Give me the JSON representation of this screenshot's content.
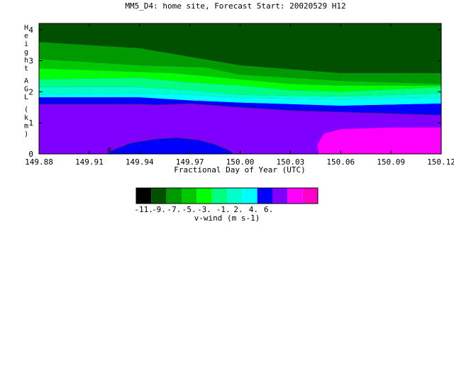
{
  "chart_data": {
    "type": "heatmap",
    "title": "MM5_D4: home site,  Forecast Start: 20020529 H12",
    "xlabel": "Fractional Day of Year (UTC)",
    "ylabel": "Height AGL (km)",
    "xlim": [
      149.88,
      150.12
    ],
    "ylim": [
      0,
      4.2
    ],
    "xticks": [
      "149.88",
      "149.91",
      "149.94",
      "149.97",
      "150.00",
      "150.03",
      "150.06",
      "150.09",
      "150.12"
    ],
    "yticks": [
      "0",
      "1",
      "2",
      "3",
      "4"
    ],
    "grid": false,
    "colorbar": {
      "label": "v-wind (m s-1)",
      "ticks": [
        "-11.",
        "-9.",
        "-7.",
        "-5.",
        "-3.",
        "-1.",
        "2.",
        "4.",
        "6."
      ],
      "bands": [
        {
          "from": -12,
          "to": -11,
          "color": "#000000"
        },
        {
          "from": -11,
          "to": -10,
          "color": "#005000"
        },
        {
          "from": -10,
          "to": -9,
          "color": "#009a00"
        },
        {
          "from": -9,
          "to": -8,
          "color": "#00c800"
        },
        {
          "from": -8,
          "to": -7,
          "color": "#00ff00"
        },
        {
          "from": -7,
          "to": -5,
          "color": "#00ff80"
        },
        {
          "from": -5,
          "to": -3,
          "color": "#00ffcc"
        },
        {
          "from": -3,
          "to": -1,
          "color": "#00ffff"
        },
        {
          "from": -1,
          "to": 0,
          "color": "#0000ff"
        },
        {
          "from": 0,
          "to": 2,
          "color": "#8000ff"
        },
        {
          "from": 2,
          "to": 4,
          "color": "#ff00ff"
        },
        {
          "from": 4,
          "to": 6,
          "color": "#ff00c8"
        }
      ]
    },
    "contour_zero_label": "0",
    "regions": [
      {
        "level": -10,
        "color": "#005000",
        "points": [
          [
            149.88,
            4.2
          ],
          [
            150.12,
            4.2
          ],
          [
            150.12,
            2.6
          ],
          [
            150.06,
            2.6
          ],
          [
            150.0,
            2.85
          ],
          [
            149.94,
            3.4
          ],
          [
            149.88,
            3.6
          ]
        ]
      },
      {
        "level": -9,
        "color": "#009a00",
        "points": [
          [
            149.88,
            3.6
          ],
          [
            149.94,
            3.4
          ],
          [
            150.0,
            2.85
          ],
          [
            150.06,
            2.6
          ],
          [
            150.12,
            2.6
          ],
          [
            150.12,
            2.25
          ],
          [
            150.06,
            2.35
          ],
          [
            150.0,
            2.55
          ],
          [
            149.98,
            2.78
          ],
          [
            149.94,
            2.85
          ],
          [
            149.88,
            3.05
          ]
        ]
      },
      {
        "level": -8,
        "color": "#00c800",
        "points": [
          [
            149.88,
            3.05
          ],
          [
            149.94,
            2.85
          ],
          [
            149.98,
            2.78
          ],
          [
            150.0,
            2.55
          ],
          [
            150.06,
            2.35
          ],
          [
            150.12,
            2.25
          ],
          [
            150.12,
            2.2
          ],
          [
            150.06,
            2.2
          ],
          [
            150.03,
            2.25
          ],
          [
            149.98,
            2.5
          ],
          [
            149.96,
            2.6
          ],
          [
            149.88,
            2.75
          ]
        ]
      },
      {
        "level": -7,
        "color": "#00ff00",
        "points": [
          [
            149.88,
            2.75
          ],
          [
            149.96,
            2.6
          ],
          [
            149.98,
            2.5
          ],
          [
            150.03,
            2.25
          ],
          [
            150.06,
            2.2
          ],
          [
            150.12,
            2.2
          ],
          [
            150.12,
            2.15
          ],
          [
            150.06,
            2.0
          ],
          [
            150.03,
            2.05
          ],
          [
            150.0,
            2.2
          ],
          [
            149.97,
            2.3
          ],
          [
            149.94,
            2.45
          ],
          [
            149.88,
            2.4
          ]
        ]
      },
      {
        "level": -5,
        "color": "#00ff80",
        "points": [
          [
            149.88,
            2.4
          ],
          [
            149.94,
            2.45
          ],
          [
            149.97,
            2.3
          ],
          [
            150.0,
            2.2
          ],
          [
            150.03,
            2.05
          ],
          [
            150.06,
            2.0
          ],
          [
            150.12,
            2.15
          ],
          [
            150.12,
            1.95
          ],
          [
            150.06,
            1.85
          ],
          [
            150.0,
            1.9
          ],
          [
            149.97,
            2.05
          ],
          [
            149.94,
            2.15
          ],
          [
            149.88,
            2.15
          ]
        ]
      },
      {
        "level": -3,
        "color": "#00ffcc",
        "points": [
          [
            149.88,
            2.15
          ],
          [
            149.94,
            2.15
          ],
          [
            149.97,
            2.05
          ],
          [
            150.0,
            1.9
          ],
          [
            150.06,
            1.85
          ],
          [
            150.12,
            1.95
          ],
          [
            150.12,
            1.8
          ],
          [
            150.06,
            1.75
          ],
          [
            150.0,
            1.8
          ],
          [
            149.97,
            1.9
          ],
          [
            149.94,
            1.95
          ],
          [
            149.88,
            1.9
          ]
        ]
      },
      {
        "level": -2,
        "color": "#00ffff",
        "points": [
          [
            149.88,
            1.9
          ],
          [
            149.94,
            1.95
          ],
          [
            149.97,
            1.9
          ],
          [
            150.0,
            1.8
          ],
          [
            150.06,
            1.75
          ],
          [
            150.12,
            1.8
          ],
          [
            150.12,
            1.62
          ],
          [
            150.06,
            1.55
          ],
          [
            150.0,
            1.65
          ],
          [
            149.97,
            1.72
          ],
          [
            149.94,
            1.82
          ],
          [
            149.88,
            1.82
          ]
        ]
      },
      {
        "level": -1,
        "color": "#0000ff",
        "points": [
          [
            149.88,
            1.82
          ],
          [
            149.94,
            1.82
          ],
          [
            149.97,
            1.72
          ],
          [
            150.0,
            1.65
          ],
          [
            150.06,
            1.55
          ],
          [
            150.12,
            1.62
          ],
          [
            150.12,
            1.25
          ],
          [
            150.09,
            1.3
          ],
          [
            150.06,
            1.35
          ],
          [
            150.03,
            1.4
          ],
          [
            150.0,
            1.5
          ],
          [
            149.98,
            1.58
          ],
          [
            149.97,
            1.62
          ],
          [
            149.95,
            1.58
          ],
          [
            149.94,
            1.6
          ],
          [
            149.88,
            1.6
          ]
        ]
      },
      {
        "level": 1,
        "color": "#8000ff",
        "points": [
          [
            149.88,
            1.6
          ],
          [
            149.94,
            1.6
          ],
          [
            149.95,
            1.58
          ],
          [
            149.97,
            1.62
          ],
          [
            149.98,
            1.58
          ],
          [
            150.0,
            1.5
          ],
          [
            150.03,
            1.4
          ],
          [
            150.06,
            1.35
          ],
          [
            150.09,
            1.3
          ],
          [
            150.12,
            1.25
          ],
          [
            150.12,
            0.0
          ],
          [
            149.88,
            0.0
          ]
        ]
      },
      {
        "level": -1,
        "color": "#0000ff",
        "points": [
          [
            149.92,
            0.0
          ],
          [
            149.924,
            0.12
          ],
          [
            149.935,
            0.35
          ],
          [
            149.95,
            0.48
          ],
          [
            149.962,
            0.52
          ],
          [
            149.975,
            0.45
          ],
          [
            149.985,
            0.3
          ],
          [
            149.994,
            0.1
          ],
          [
            149.996,
            0.0
          ]
        ]
      },
      {
        "level": 3,
        "color": "#ff00ff",
        "points": [
          [
            150.047,
            0.0
          ],
          [
            150.046,
            0.3
          ],
          [
            150.05,
            0.65
          ],
          [
            150.06,
            0.8
          ],
          [
            150.09,
            0.85
          ],
          [
            150.12,
            0.85
          ],
          [
            150.12,
            0.0
          ]
        ]
      }
    ]
  }
}
